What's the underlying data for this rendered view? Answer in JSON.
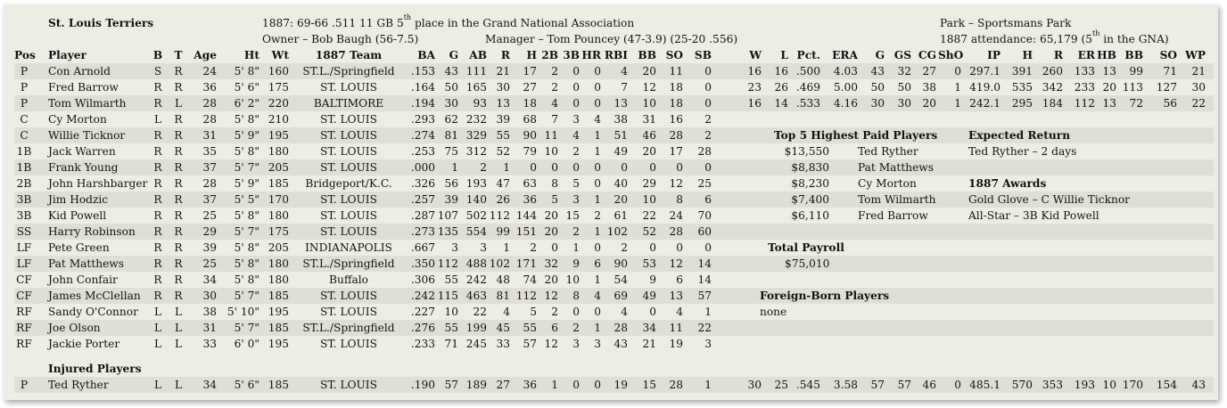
{
  "header": {
    "team_name": "St. Louis Terriers",
    "season_line": "1887:  69-66  .511  11 GB  5",
    "season_sup": "th",
    "season_tail": " place in the Grand National Association",
    "owner": "Owner – Bob Baugh (56-7.5)",
    "manager": "Manager – Tom Pouncey (47-3.9)  (25-20  .556)",
    "park": "Park – Sportsmans Park",
    "attendance": "1887 attendance:  65,179  (5",
    "attendance_sup": "th",
    "attendance_tail": " in the GNA)"
  },
  "columns": [
    "Pos",
    "Player",
    "B",
    "T",
    "Age",
    "Ht",
    "Wt",
    "1887 Team",
    "BA",
    "G",
    "AB",
    "R",
    "H",
    "2B",
    "3B",
    "HR",
    "RBI",
    "BB",
    "SO",
    "SB",
    "W",
    "L",
    "Pct.",
    "ERA",
    "G",
    "GS",
    "CG",
    "ShO",
    "IP",
    "H",
    "R",
    "ER",
    "HB",
    "BB",
    "SO",
    "WP"
  ],
  "players": [
    {
      "pos": "P",
      "name": "Con Arnold",
      "b": "S",
      "t": "R",
      "age": "24",
      "ht": "5' 8\"",
      "wt": "160",
      "team": "ST.L./Springfield",
      "ba": ".153",
      "g": "43",
      "ab": "111",
      "r": "21",
      "h": "17",
      "d": "2",
      "tr": "0",
      "hr": "0",
      "rbi": "4",
      "bb": "20",
      "so": "11",
      "sb": "0",
      "pw": "16",
      "pl": "16",
      "pct": ".500",
      "era": "4.03",
      "pg": "43",
      "gs": "32",
      "cg": "27",
      "sho": "0",
      "ip": "297.1",
      "ph": "391",
      "pr": "260",
      "er": "133",
      "hb": "13",
      "pbb": "99",
      "pso": "71",
      "wp": "21"
    },
    {
      "pos": "P",
      "name": "Fred Barrow",
      "b": "R",
      "t": "R",
      "age": "36",
      "ht": "5' 6\"",
      "wt": "175",
      "team": "ST. LOUIS",
      "ba": ".164",
      "g": "50",
      "ab": "165",
      "r": "30",
      "h": "27",
      "d": "2",
      "tr": "0",
      "hr": "0",
      "rbi": "7",
      "bb": "12",
      "so": "18",
      "sb": "0",
      "pw": "23",
      "pl": "26",
      "pct": ".469",
      "era": "5.00",
      "pg": "50",
      "gs": "50",
      "cg": "38",
      "sho": "1",
      "ip": "419.0",
      "ph": "535",
      "pr": "342",
      "er": "233",
      "hb": "20",
      "pbb": "113",
      "pso": "127",
      "wp": "30"
    },
    {
      "pos": "P",
      "name": "Tom Wilmarth",
      "b": "R",
      "t": "L",
      "age": "28",
      "ht": "6' 2\"",
      "wt": "220",
      "team": "BALTIMORE",
      "ba": ".194",
      "g": "30",
      "ab": "93",
      "r": "13",
      "h": "18",
      "d": "4",
      "tr": "0",
      "hr": "0",
      "rbi": "13",
      "bb": "10",
      "so": "18",
      "sb": "0",
      "pw": "16",
      "pl": "14",
      "pct": ".533",
      "era": "4.16",
      "pg": "30",
      "gs": "30",
      "cg": "20",
      "sho": "1",
      "ip": "242.1",
      "ph": "295",
      "pr": "184",
      "er": "112",
      "hb": "13",
      "pbb": "72",
      "pso": "56",
      "wp": "22"
    },
    {
      "pos": "C",
      "name": "Cy Morton",
      "b": "L",
      "t": "R",
      "age": "28",
      "ht": "5' 8\"",
      "wt": "210",
      "team": "ST. LOUIS",
      "ba": ".293",
      "g": "62",
      "ab": "232",
      "r": "39",
      "h": "68",
      "d": "7",
      "tr": "3",
      "hr": "4",
      "rbi": "38",
      "bb": "31",
      "so": "16",
      "sb": "2"
    },
    {
      "pos": "C",
      "name": "Willie Ticknor",
      "b": "R",
      "t": "R",
      "age": "31",
      "ht": "5' 9\"",
      "wt": "195",
      "team": "ST. LOUIS",
      "ba": ".274",
      "g": "81",
      "ab": "329",
      "r": "55",
      "h": "90",
      "d": "11",
      "tr": "4",
      "hr": "1",
      "rbi": "51",
      "bb": "46",
      "so": "28",
      "sb": "2"
    },
    {
      "pos": "1B",
      "name": "Jack Warren",
      "b": "R",
      "t": "R",
      "age": "35",
      "ht": "5' 8\"",
      "wt": "180",
      "team": "ST. LOUIS",
      "ba": ".253",
      "g": "75",
      "ab": "312",
      "r": "52",
      "h": "79",
      "d": "10",
      "tr": "2",
      "hr": "1",
      "rbi": "49",
      "bb": "20",
      "so": "17",
      "sb": "28"
    },
    {
      "pos": "1B",
      "name": "Frank Young",
      "b": "R",
      "t": "R",
      "age": "37",
      "ht": "5' 7\"",
      "wt": "205",
      "team": "ST. LOUIS",
      "ba": ".000",
      "g": "1",
      "ab": "2",
      "r": "1",
      "h": "0",
      "d": "0",
      "tr": "0",
      "hr": "0",
      "rbi": "0",
      "bb": "0",
      "so": "0",
      "sb": "0"
    },
    {
      "pos": "2B",
      "name": "John Harshbarger",
      "b": "R",
      "t": "R",
      "age": "28",
      "ht": "5' 9\"",
      "wt": "185",
      "team": "Bridgeport/K.C.",
      "ba": ".326",
      "g": "56",
      "ab": "193",
      "r": "47",
      "h": "63",
      "d": "8",
      "tr": "5",
      "hr": "0",
      "rbi": "40",
      "bb": "29",
      "so": "12",
      "sb": "25"
    },
    {
      "pos": "3B",
      "name": "Jim Hodzic",
      "b": "R",
      "t": "R",
      "age": "37",
      "ht": "5' 5\"",
      "wt": "170",
      "team": "ST. LOUIS",
      "ba": ".257",
      "g": "39",
      "ab": "140",
      "r": "26",
      "h": "36",
      "d": "5",
      "tr": "3",
      "hr": "1",
      "rbi": "20",
      "bb": "10",
      "so": "8",
      "sb": "6"
    },
    {
      "pos": "3B",
      "name": "Kid Powell",
      "b": "R",
      "t": "R",
      "age": "25",
      "ht": "5' 8\"",
      "wt": "180",
      "team": "ST. LOUIS",
      "ba": ".287",
      "g": "107",
      "ab": "502",
      "r": "112",
      "h": "144",
      "d": "20",
      "tr": "15",
      "hr": "2",
      "rbi": "61",
      "bb": "22",
      "so": "24",
      "sb": "70"
    },
    {
      "pos": "SS",
      "name": "Harry Robinson",
      "b": "R",
      "t": "R",
      "age": "29",
      "ht": "5' 7\"",
      "wt": "175",
      "team": "ST. LOUIS",
      "ba": ".273",
      "g": "135",
      "ab": "554",
      "r": "99",
      "h": "151",
      "d": "20",
      "tr": "2",
      "hr": "1",
      "rbi": "102",
      "bb": "52",
      "so": "28",
      "sb": "60"
    },
    {
      "pos": "LF",
      "name": "Pete Green",
      "b": "R",
      "t": "R",
      "age": "39",
      "ht": "5' 8\"",
      "wt": "205",
      "team": "INDIANAPOLIS",
      "ba": ".667",
      "g": "3",
      "ab": "3",
      "r": "1",
      "h": "2",
      "d": "0",
      "tr": "1",
      "hr": "0",
      "rbi": "2",
      "bb": "0",
      "so": "0",
      "sb": "0"
    },
    {
      "pos": "LF",
      "name": "Pat Matthews",
      "b": "R",
      "t": "R",
      "age": "25",
      "ht": "5' 8\"",
      "wt": "180",
      "team": "ST.L./Springfield",
      "ba": ".350",
      "g": "112",
      "ab": "488",
      "r": "102",
      "h": "171",
      "d": "32",
      "tr": "9",
      "hr": "6",
      "rbi": "90",
      "bb": "53",
      "so": "12",
      "sb": "14"
    },
    {
      "pos": "CF",
      "name": "John Confair",
      "b": "R",
      "t": "R",
      "age": "34",
      "ht": "5' 8\"",
      "wt": "180",
      "team": "Buffalo",
      "ba": ".306",
      "g": "55",
      "ab": "242",
      "r": "48",
      "h": "74",
      "d": "20",
      "tr": "10",
      "hr": "1",
      "rbi": "54",
      "bb": "9",
      "so": "6",
      "sb": "14"
    },
    {
      "pos": "CF",
      "name": "James McClellan",
      "b": "R",
      "t": "R",
      "age": "30",
      "ht": "5' 7\"",
      "wt": "185",
      "team": "ST. LOUIS",
      "ba": ".242",
      "g": "115",
      "ab": "463",
      "r": "81",
      "h": "112",
      "d": "12",
      "tr": "8",
      "hr": "4",
      "rbi": "69",
      "bb": "49",
      "so": "13",
      "sb": "57"
    },
    {
      "pos": "RF",
      "name": "Sandy O'Connor",
      "b": "L",
      "t": "L",
      "age": "38",
      "ht": "5' 10\"",
      "wt": "195",
      "team": "ST. LOUIS",
      "ba": ".227",
      "g": "10",
      "ab": "22",
      "r": "4",
      "h": "5",
      "d": "2",
      "tr": "0",
      "hr": "0",
      "rbi": "4",
      "bb": "0",
      "so": "4",
      "sb": "1"
    },
    {
      "pos": "RF",
      "name": "Joe Olson",
      "b": "L",
      "t": "L",
      "age": "31",
      "ht": "5' 7\"",
      "wt": "185",
      "team": "ST.L./Springfield",
      "ba": ".276",
      "g": "55",
      "ab": "199",
      "r": "45",
      "h": "55",
      "d": "6",
      "tr": "2",
      "hr": "1",
      "rbi": "28",
      "bb": "34",
      "so": "11",
      "sb": "22"
    },
    {
      "pos": "RF",
      "name": "Jackie Porter",
      "b": "L",
      "t": "L",
      "age": "33",
      "ht": "6' 0\"",
      "wt": "195",
      "team": "ST. LOUIS",
      "ba": ".233",
      "g": "71",
      "ab": "245",
      "r": "33",
      "h": "57",
      "d": "12",
      "tr": "3",
      "hr": "3",
      "rbi": "43",
      "bb": "21",
      "so": "19",
      "sb": "3"
    }
  ],
  "injured": {
    "title": "Injured Players",
    "players": [
      {
        "pos": "P",
        "name": "Ted Ryther",
        "b": "L",
        "t": "L",
        "age": "34",
        "ht": "5' 6\"",
        "wt": "185",
        "team": "ST. LOUIS",
        "ba": ".190",
        "g": "57",
        "ab": "189",
        "r": "27",
        "h": "36",
        "d": "1",
        "tr": "0",
        "hr": "0",
        "rbi": "19",
        "bb": "15",
        "so": "28",
        "sb": "1",
        "pw": "30",
        "pl": "25",
        "pct": ".545",
        "era": "3.58",
        "pg": "57",
        "gs": "57",
        "cg": "46",
        "sho": "0",
        "ip": "485.1",
        "ph": "570",
        "pr": "353",
        "er": "193",
        "hb": "10",
        "pbb": "170",
        "pso": "154",
        "wp": "43"
      }
    ]
  },
  "top_paid": {
    "title": "Top 5 Highest Paid Players",
    "items": [
      {
        "salary": "$13,550",
        "name": "Ted Ryther"
      },
      {
        "salary": "$8,830",
        "name": "Pat Matthews"
      },
      {
        "salary": "$8,230",
        "name": "Cy Morton"
      },
      {
        "salary": "$7,400",
        "name": "Tom Wilmarth"
      },
      {
        "salary": "$6,110",
        "name": "Fred Barrow"
      }
    ]
  },
  "expected_return": {
    "title": "Expected Return",
    "text": "Ted Ryther – 2 days"
  },
  "awards": {
    "title": "1887 Awards",
    "items": [
      "Gold Glove – C Willie Ticknor",
      "All-Star – 3B Kid Powell"
    ]
  },
  "payroll": {
    "title": "Total Payroll",
    "value": "$75,010"
  },
  "foreign": {
    "title": "Foreign-Born Players",
    "value": "none"
  }
}
